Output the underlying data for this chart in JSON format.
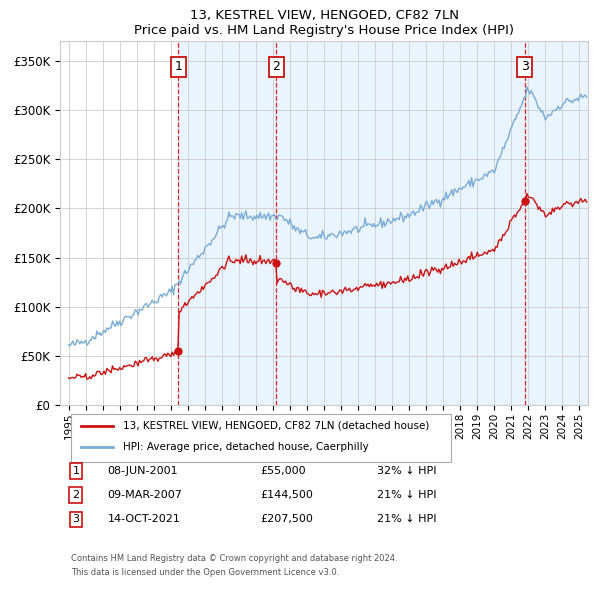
{
  "title": "13, KESTREL VIEW, HENGOED, CF82 7LN",
  "subtitle": "Price paid vs. HM Land Registry's House Price Index (HPI)",
  "legend_line1": "13, KESTREL VIEW, HENGOED, CF82 7LN (detached house)",
  "legend_line2": "HPI: Average price, detached house, Caerphilly",
  "footnote1": "Contains HM Land Registry data © Crown copyright and database right 2024.",
  "footnote2": "This data is licensed under the Open Government Licence v3.0.",
  "transactions": [
    {
      "num": 1,
      "date": "08-JUN-2001",
      "price": 55000,
      "pct": "32%",
      "dir": "↓",
      "x_year": 2001.44
    },
    {
      "num": 2,
      "date": "09-MAR-2007",
      "price": 144500,
      "pct": "21%",
      "dir": "↓",
      "x_year": 2007.19
    },
    {
      "num": 3,
      "date": "14-OCT-2021",
      "price": 207500,
      "pct": "21%",
      "dir": "↓",
      "x_year": 2021.79
    }
  ],
  "hpi_color": "#7aadd4",
  "price_color": "#cc1111",
  "vline_color": "#dd0000",
  "shade_color": "#ddeeff",
  "grid_color": "#cccccc",
  "bg_color": "#ffffff",
  "ylim": [
    0,
    370000
  ],
  "xlim_start": 1994.5,
  "xlim_end": 2025.5,
  "yticks": [
    0,
    50000,
    100000,
    150000,
    200000,
    250000,
    300000,
    350000
  ],
  "ytick_labels": [
    "£0",
    "£50K",
    "£100K",
    "£150K",
    "£200K",
    "£250K",
    "£300K",
    "£350K"
  ]
}
